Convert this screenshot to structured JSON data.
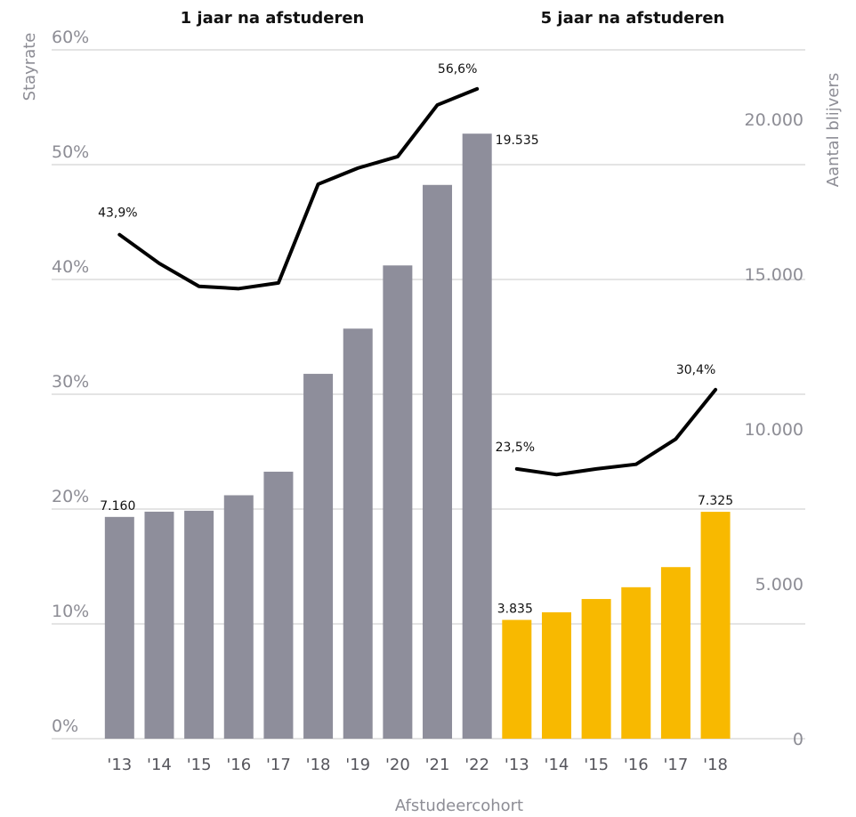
{
  "chart_data": {
    "type": "bar",
    "xlabel": "Afstudeercohort",
    "ylabel_left": "Stayrate",
    "ylabel_right": "Aantal blijvers",
    "left_axis": {
      "ylim": [
        0,
        60
      ],
      "ticks": [
        "0%",
        "10%",
        "20%",
        "30%",
        "40%",
        "50%",
        "60%"
      ]
    },
    "right_axis": {
      "ylim": [
        0,
        20000
      ],
      "ticks": [
        "0",
        "5.000",
        "10.000",
        "15.000",
        "20.000"
      ]
    },
    "grid": true,
    "colors": {
      "bars_1yr": "#8e8e9b",
      "bars_5yr": "#f8b900",
      "line": "#000000",
      "grid": "#c8c8c8"
    },
    "panels": [
      {
        "title": "1 jaar na afstuderen",
        "categories": [
          "'13",
          "'14",
          "'15",
          "'16",
          "'17",
          "'18",
          "'19",
          "'20",
          "'21",
          "'22"
        ],
        "bar_values": [
          7160,
          7330,
          7360,
          7860,
          8620,
          11780,
          13240,
          15280,
          17880,
          19535
        ],
        "bar_labels": [
          "7.160",
          "",
          "",
          "",
          "",
          "",
          "",
          "",
          "",
          "19.535"
        ],
        "line_values": [
          43.9,
          41.4,
          39.4,
          39.2,
          39.7,
          48.3,
          49.7,
          50.7,
          55.2,
          56.6
        ],
        "line_labels": [
          "43,9%",
          "",
          "",
          "",
          "",
          "",
          "",
          "",
          "",
          "56,6%"
        ]
      },
      {
        "title": "5 jaar na afstuderen",
        "categories": [
          "'13",
          "'14",
          "'15",
          "'16",
          "'17",
          "'18"
        ],
        "bar_values": [
          3835,
          4080,
          4510,
          4890,
          5540,
          7325
        ],
        "bar_labels": [
          "3.835",
          "",
          "",
          "",
          "",
          "7.325"
        ],
        "line_values": [
          23.5,
          23.0,
          23.5,
          23.9,
          26.1,
          30.4
        ],
        "line_labels": [
          "23,5%",
          "",
          "",
          "",
          "",
          "30,4%"
        ]
      }
    ]
  }
}
